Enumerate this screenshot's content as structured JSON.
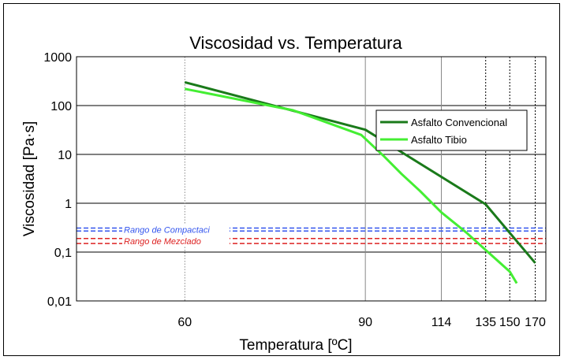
{
  "chart_data": {
    "type": "line",
    "title": "Viscosidad vs. Temperatura",
    "xlabel": "Temperatura [ºC]",
    "ylabel": "Viscosidad [Pa·s]",
    "x_scale": "reciprocal",
    "y_scale": "log",
    "xlim": [
      50,
      180
    ],
    "ylim": [
      0.01,
      1000
    ],
    "x_ticks": [
      60,
      90,
      114,
      135,
      150,
      170
    ],
    "x_tick_labels": [
      "60",
      "90",
      "114",
      "135",
      "150",
      "170"
    ],
    "y_ticks": [
      0.01,
      0.1,
      1,
      10,
      100,
      1000
    ],
    "y_tick_labels": [
      "0,01",
      "0,1",
      "1",
      "10",
      "100",
      "1000"
    ],
    "grid": true,
    "legend_position": "upper right",
    "series": [
      {
        "name": "Asfalto Convencional",
        "color": "#1a7a1a",
        "x": [
          60,
          90,
          135,
          170
        ],
        "y": [
          300,
          32,
          0.95,
          0.06
        ]
      },
      {
        "name": "Asfalto Tibio",
        "color": "#44ee33",
        "x": [
          60,
          75,
          89,
          95,
          100,
          106,
          114,
          125,
          135,
          150,
          155
        ],
        "y": [
          220,
          80,
          25,
          9,
          4,
          1.8,
          0.65,
          0.25,
          0.11,
          0.04,
          0.023
        ]
      }
    ],
    "bands": [
      {
        "label": "Rango de Compactaci",
        "color": "#3355ee",
        "y": [
          0.27,
          0.31
        ]
      },
      {
        "label": "Rango de Mezclado",
        "color": "#dd2222",
        "y": [
          0.15,
          0.19
        ]
      }
    ]
  }
}
